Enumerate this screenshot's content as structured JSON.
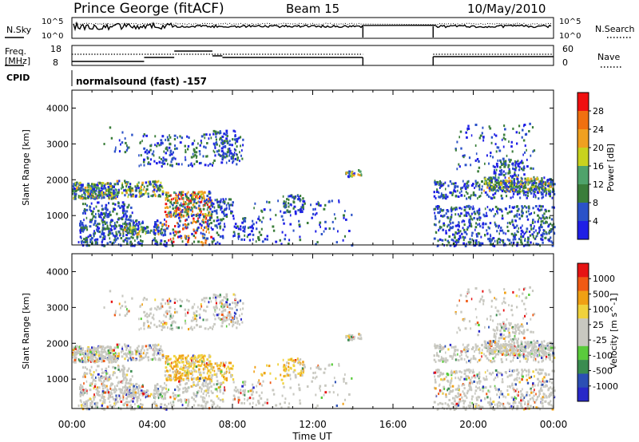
{
  "header": {
    "station": "Prince George (fitACF)",
    "beam": "Beam 15",
    "date": "10/May/2010"
  },
  "noise_panel": {
    "left_label": "N.Sky",
    "left_ticks": [
      "10^5",
      "10^0"
    ],
    "right_label": "N.Search",
    "right_ticks": [
      "10^5",
      "10^0"
    ]
  },
  "freq_panel": {
    "left_label_1": "Freq.",
    "left_label_2": "[MHz]",
    "left_ticks": [
      "18",
      "8"
    ],
    "right_label": "Nave",
    "right_ticks": [
      "60",
      "0"
    ]
  },
  "cpid": {
    "label": "CPID",
    "value": "normalsound (fast) -157"
  },
  "colors": {
    "power_scale": [
      "#1f1fe6",
      "#2b52c8",
      "#3a7d3a",
      "#4fa36b",
      "#c8d21e",
      "#f0a020",
      "#f07010",
      "#f01010"
    ],
    "velocity_scale": [
      "#e61414",
      "#f05a14",
      "#f0a014",
      "#f0d23c",
      "#c8c8c0",
      "#c8c8c0",
      "#5acb3c",
      "#3a8c50",
      "#2c4fb4",
      "#2828c8"
    ]
  },
  "chart_data": [
    {
      "type": "heatmap",
      "title": "",
      "xlabel": "Time UT",
      "ylabel": "Slant Range [km]",
      "x_ticks": [
        "00:00",
        "04:00",
        "08:00",
        "12:00",
        "16:00",
        "20:00",
        "00:00"
      ],
      "xlim_hours": [
        0,
        24
      ],
      "ylim": [
        180,
        4500
      ],
      "y_ticks": [
        1000,
        2000,
        3000,
        4000
      ],
      "colorbar_label": "Power [dB]",
      "colorbar_ticks": [
        "4",
        "8",
        "12",
        "16",
        "20",
        "24",
        "28"
      ],
      "data_gap_hours": [
        14.5,
        18.0
      ]
    },
    {
      "type": "heatmap",
      "title": "",
      "xlabel": "Time UT",
      "ylabel": "Slant Range [km]",
      "x_ticks": [
        "00:00",
        "04:00",
        "08:00",
        "12:00",
        "16:00",
        "20:00",
        "00:00"
      ],
      "xlim_hours": [
        0,
        24
      ],
      "ylim": [
        180,
        4500
      ],
      "y_ticks": [
        1000,
        2000,
        3000,
        4000
      ],
      "colorbar_label": "Velocity [m s^-1]",
      "colorbar_ticks": [
        "1000",
        "500",
        "100",
        "25",
        "-25",
        "-100",
        "-500",
        "-1000"
      ],
      "data_gap_hours": [
        14.5,
        18.0
      ]
    }
  ]
}
